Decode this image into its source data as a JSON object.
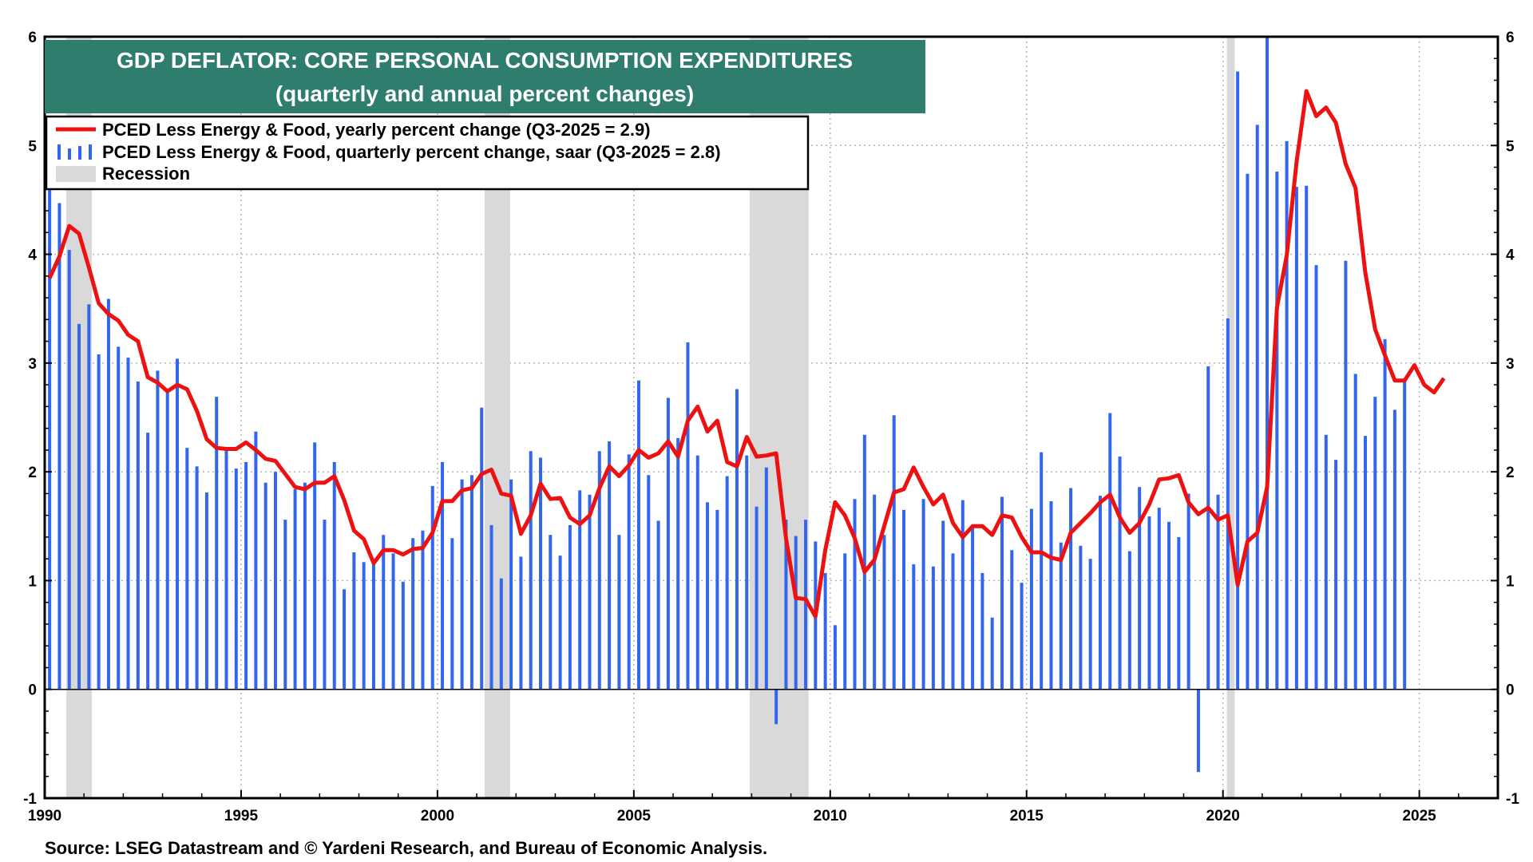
{
  "chart_data": {
    "type": "bar+line",
    "title": "GDP DEFLATOR: CORE PERSONAL CONSUMPTION EXPENDITURES",
    "subtitle": "(quarterly and annual percent changes)",
    "legend": [
      {
        "label": "PCED Less Energy & Food,  yearly percent change (Q3-2025 = 2.9)",
        "kind": "line",
        "color": "#ee1111"
      },
      {
        "label": "PCED Less Energy & Food, quarterly percent change, saar  (Q3-2025 = 2.8)",
        "kind": "bars",
        "color": "#3366ee"
      },
      {
        "label": "Recession",
        "kind": "band",
        "color": "#d9d9d9"
      }
    ],
    "source": "Source: LSEG Datastream and © Yardeni Research, and Bureau of Economic Analysis.",
    "xlim": [
      1990,
      2027
    ],
    "ylim": [
      -1,
      6
    ],
    "x_ticks": [
      "1990",
      "1995",
      "2000",
      "2005",
      "2010",
      "2015",
      "2020",
      "2025"
    ],
    "y_ticks": [
      "-1",
      "0",
      "1",
      "2",
      "3",
      "4",
      "5",
      "6"
    ],
    "recessions": [
      [
        1990.55,
        1991.2
      ],
      [
        2001.2,
        2001.85
      ],
      [
        2007.95,
        2009.45
      ],
      [
        2020.1,
        2020.3
      ]
    ],
    "quarterly_start": 1990.125,
    "quarterly_saar": [
      4.6,
      4.47,
      4.04,
      3.36,
      3.54,
      3.08,
      3.59,
      3.15,
      3.05,
      2.83,
      2.36,
      2.93,
      2.75,
      3.04,
      2.22,
      2.05,
      1.81,
      2.69,
      2.2,
      2.03,
      2.09,
      2.37,
      1.9,
      2.0,
      1.56,
      1.84,
      1.9,
      2.27,
      1.56,
      2.09,
      0.92,
      1.26,
      1.17,
      1.18,
      1.42,
      1.25,
      0.99,
      1.39,
      1.46,
      1.87,
      2.09,
      1.39,
      1.93,
      1.97,
      2.59,
      1.51,
      1.02,
      1.93,
      1.22,
      2.19,
      2.13,
      1.42,
      1.23,
      1.51,
      1.83,
      1.79,
      2.19,
      2.28,
      1.42,
      2.16,
      2.84,
      1.97,
      1.55,
      2.68,
      2.31,
      3.19,
      2.15,
      1.72,
      1.65,
      1.96,
      2.76,
      2.15,
      1.68,
      2.04,
      -0.32,
      1.56,
      1.41,
      1.56,
      1.36,
      1.07,
      0.59,
      1.25,
      1.75,
      2.34,
      1.79,
      1.42,
      2.52,
      1.65,
      1.15,
      1.75,
      1.13,
      1.55,
      1.25,
      1.74,
      1.5,
      1.07,
      0.66,
      1.77,
      1.28,
      0.98,
      1.66,
      2.18,
      1.73,
      1.35,
      1.85,
      1.32,
      1.2,
      1.78,
      2.54,
      2.14,
      1.27,
      1.86,
      1.59,
      1.67,
      1.54,
      1.4,
      1.8,
      -0.76,
      2.97,
      1.79,
      3.41,
      5.68,
      4.74,
      5.19,
      6.0,
      4.76,
      5.04,
      4.62,
      4.63,
      3.9,
      2.34,
      2.11,
      3.94,
      2.9,
      2.33,
      2.69,
      3.22,
      2.57,
      2.85
    ],
    "annual_line": [
      [
        1990.125,
        3.78
      ],
      [
        1990.375,
        3.98
      ],
      [
        1990.625,
        4.26
      ],
      [
        1990.875,
        4.19
      ],
      [
        1991.125,
        3.88
      ],
      [
        1991.375,
        3.55
      ],
      [
        1991.625,
        3.45
      ],
      [
        1991.875,
        3.39
      ],
      [
        1992.125,
        3.26
      ],
      [
        1992.375,
        3.2
      ],
      [
        1992.625,
        2.87
      ],
      [
        1992.875,
        2.82
      ],
      [
        1993.125,
        2.74
      ],
      [
        1993.375,
        2.8
      ],
      [
        1993.625,
        2.76
      ],
      [
        1993.875,
        2.56
      ],
      [
        1994.125,
        2.3
      ],
      [
        1994.375,
        2.22
      ],
      [
        1994.625,
        2.21
      ],
      [
        1994.875,
        2.21
      ],
      [
        1995.125,
        2.27
      ],
      [
        1995.375,
        2.2
      ],
      [
        1995.625,
        2.12
      ],
      [
        1995.875,
        2.1
      ],
      [
        1996.125,
        1.98
      ],
      [
        1996.375,
        1.86
      ],
      [
        1996.625,
        1.84
      ],
      [
        1996.875,
        1.9
      ],
      [
        1997.125,
        1.9
      ],
      [
        1997.375,
        1.96
      ],
      [
        1997.625,
        1.74
      ],
      [
        1997.875,
        1.46
      ],
      [
        1998.125,
        1.38
      ],
      [
        1998.375,
        1.16
      ],
      [
        1998.625,
        1.28
      ],
      [
        1998.875,
        1.28
      ],
      [
        1999.125,
        1.24
      ],
      [
        1999.375,
        1.29
      ],
      [
        1999.625,
        1.3
      ],
      [
        1999.875,
        1.44
      ],
      [
        2000.125,
        1.73
      ],
      [
        2000.375,
        1.73
      ],
      [
        2000.625,
        1.83
      ],
      [
        2000.875,
        1.85
      ],
      [
        2001.125,
        1.98
      ],
      [
        2001.375,
        2.02
      ],
      [
        2001.625,
        1.8
      ],
      [
        2001.875,
        1.78
      ],
      [
        2002.125,
        1.43
      ],
      [
        2002.375,
        1.6
      ],
      [
        2002.625,
        1.89
      ],
      [
        2002.875,
        1.75
      ],
      [
        2003.125,
        1.76
      ],
      [
        2003.375,
        1.58
      ],
      [
        2003.625,
        1.52
      ],
      [
        2003.875,
        1.6
      ],
      [
        2004.125,
        1.85
      ],
      [
        2004.375,
        2.05
      ],
      [
        2004.625,
        1.96
      ],
      [
        2004.875,
        2.06
      ],
      [
        2005.125,
        2.2
      ],
      [
        2005.375,
        2.13
      ],
      [
        2005.625,
        2.17
      ],
      [
        2005.875,
        2.28
      ],
      [
        2006.125,
        2.14
      ],
      [
        2006.375,
        2.47
      ],
      [
        2006.625,
        2.6
      ],
      [
        2006.875,
        2.37
      ],
      [
        2007.125,
        2.47
      ],
      [
        2007.375,
        2.09
      ],
      [
        2007.625,
        2.05
      ],
      [
        2007.875,
        2.32
      ],
      [
        2008.125,
        2.14
      ],
      [
        2008.375,
        2.15
      ],
      [
        2008.625,
        2.17
      ],
      [
        2008.875,
        1.39
      ],
      [
        2009.125,
        0.84
      ],
      [
        2009.375,
        0.83
      ],
      [
        2009.625,
        0.67
      ],
      [
        2009.875,
        1.28
      ],
      [
        2010.125,
        1.72
      ],
      [
        2010.375,
        1.6
      ],
      [
        2010.625,
        1.39
      ],
      [
        2010.875,
        1.08
      ],
      [
        2011.125,
        1.19
      ],
      [
        2011.375,
        1.5
      ],
      [
        2011.625,
        1.81
      ],
      [
        2011.875,
        1.84
      ],
      [
        2012.125,
        2.04
      ],
      [
        2012.375,
        1.86
      ],
      [
        2012.625,
        1.7
      ],
      [
        2012.875,
        1.79
      ],
      [
        2013.125,
        1.53
      ],
      [
        2013.375,
        1.4
      ],
      [
        2013.625,
        1.5
      ],
      [
        2013.875,
        1.5
      ],
      [
        2014.125,
        1.42
      ],
      [
        2014.375,
        1.6
      ],
      [
        2014.625,
        1.58
      ],
      [
        2014.875,
        1.4
      ],
      [
        2015.125,
        1.26
      ],
      [
        2015.375,
        1.26
      ],
      [
        2015.625,
        1.21
      ],
      [
        2015.875,
        1.19
      ],
      [
        2016.125,
        1.44
      ],
      [
        2016.375,
        1.53
      ],
      [
        2016.625,
        1.62
      ],
      [
        2016.875,
        1.72
      ],
      [
        2017.125,
        1.79
      ],
      [
        2017.375,
        1.58
      ],
      [
        2017.625,
        1.44
      ],
      [
        2017.875,
        1.53
      ],
      [
        2018.125,
        1.7
      ],
      [
        2018.375,
        1.93
      ],
      [
        2018.625,
        1.94
      ],
      [
        2018.875,
        1.97
      ],
      [
        2019.125,
        1.72
      ],
      [
        2019.375,
        1.61
      ],
      [
        2019.625,
        1.67
      ],
      [
        2019.875,
        1.56
      ],
      [
        2020.125,
        1.6
      ],
      [
        2020.375,
        0.96
      ],
      [
        2020.625,
        1.36
      ],
      [
        2020.875,
        1.44
      ],
      [
        2021.125,
        1.86
      ],
      [
        2021.375,
        3.51
      ],
      [
        2021.625,
        3.99
      ],
      [
        2021.875,
        4.85
      ],
      [
        2022.125,
        5.5
      ],
      [
        2022.375,
        5.27
      ],
      [
        2022.625,
        5.35
      ],
      [
        2022.875,
        5.21
      ],
      [
        2023.125,
        4.83
      ],
      [
        2023.375,
        4.61
      ],
      [
        2023.625,
        3.83
      ],
      [
        2023.875,
        3.31
      ],
      [
        2024.125,
        3.07
      ],
      [
        2024.375,
        2.84
      ],
      [
        2024.625,
        2.84
      ],
      [
        2024.875,
        2.98
      ],
      [
        2025.125,
        2.8
      ],
      [
        2025.375,
        2.73
      ],
      [
        2025.625,
        2.86
      ]
    ]
  }
}
